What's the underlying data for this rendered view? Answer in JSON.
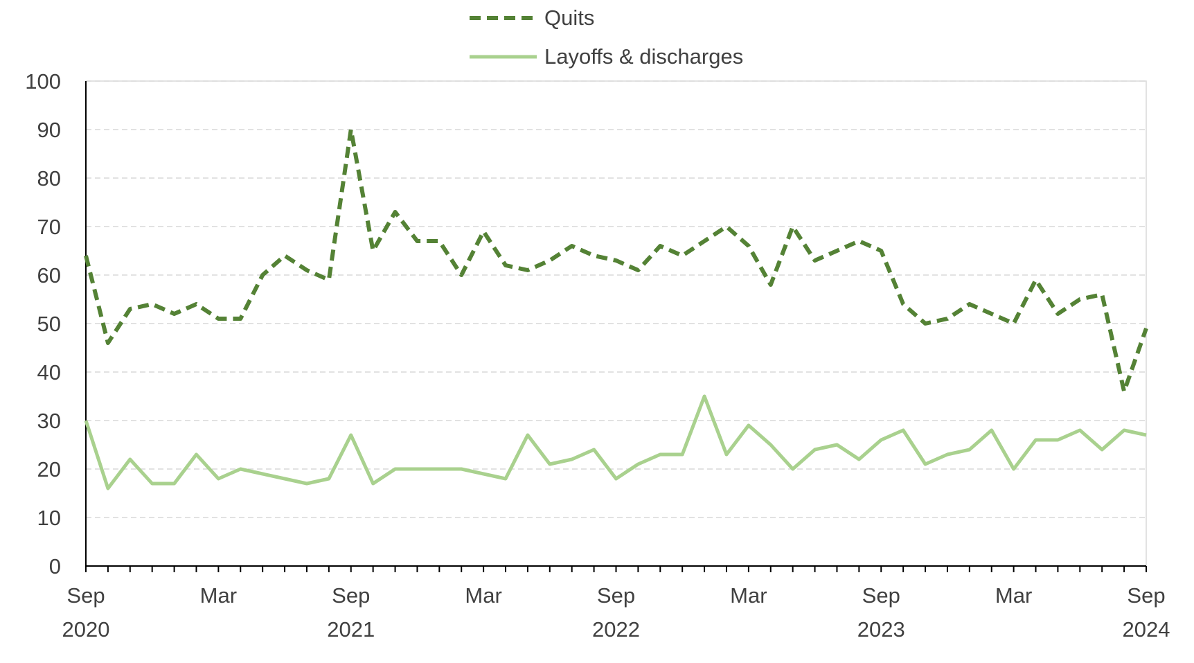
{
  "chart_data": {
    "type": "line",
    "title": "",
    "xlabel": "",
    "ylabel": "",
    "ylim": [
      0,
      100
    ],
    "yticks": [
      0,
      10,
      20,
      30,
      40,
      50,
      60,
      70,
      80,
      90,
      100
    ],
    "grid": true,
    "legend_position": "top-center",
    "x": [
      "2020-09",
      "2020-10",
      "2020-11",
      "2020-12",
      "2021-01",
      "2021-02",
      "2021-03",
      "2021-04",
      "2021-05",
      "2021-06",
      "2021-07",
      "2021-08",
      "2021-09",
      "2021-10",
      "2021-11",
      "2021-12",
      "2022-01",
      "2022-02",
      "2022-03",
      "2022-04",
      "2022-05",
      "2022-06",
      "2022-07",
      "2022-08",
      "2022-09",
      "2022-10",
      "2022-11",
      "2022-12",
      "2023-01",
      "2023-02",
      "2023-03",
      "2023-04",
      "2023-05",
      "2023-06",
      "2023-07",
      "2023-08",
      "2023-09",
      "2023-10",
      "2023-11",
      "2023-12",
      "2024-01",
      "2024-02",
      "2024-03",
      "2024-04",
      "2024-05",
      "2024-06",
      "2024-07",
      "2024-08",
      "2024-09"
    ],
    "x_tick_labels": [
      {
        "x": "2020-09",
        "month": "Sep",
        "year": "2020"
      },
      {
        "x": "2021-03",
        "month": "Mar",
        "year": ""
      },
      {
        "x": "2021-09",
        "month": "Sep",
        "year": "2021"
      },
      {
        "x": "2022-03",
        "month": "Mar",
        "year": ""
      },
      {
        "x": "2022-09",
        "month": "Sep",
        "year": "2022"
      },
      {
        "x": "2023-03",
        "month": "Mar",
        "year": ""
      },
      {
        "x": "2023-09",
        "month": "Sep",
        "year": "2023"
      },
      {
        "x": "2024-03",
        "month": "Mar",
        "year": ""
      },
      {
        "x": "2024-09",
        "month": "Sep",
        "year": "2024"
      }
    ],
    "series": [
      {
        "name": "Quits",
        "color": "#548235",
        "style": "dashed",
        "values": [
          64,
          46,
          53,
          54,
          52,
          54,
          51,
          51,
          60,
          64,
          61,
          59,
          90,
          65,
          73,
          67,
          67,
          60,
          69,
          62,
          61,
          63,
          66,
          64,
          63,
          61,
          66,
          64,
          67,
          70,
          66,
          58,
          70,
          63,
          65,
          67,
          65,
          54,
          50,
          51,
          54,
          52,
          50,
          59,
          52,
          55,
          56,
          36,
          49
        ]
      },
      {
        "name": "Layoffs & discharges",
        "color": "#a9d18e",
        "style": "solid",
        "values": [
          30,
          16,
          22,
          17,
          17,
          23,
          18,
          20,
          19,
          18,
          17,
          18,
          27,
          17,
          20,
          20,
          20,
          20,
          19,
          18,
          27,
          21,
          22,
          24,
          18,
          21,
          23,
          23,
          35,
          23,
          29,
          25,
          20,
          24,
          25,
          22,
          26,
          28,
          21,
          23,
          24,
          28,
          20,
          26,
          26,
          28,
          24,
          28,
          27
        ]
      }
    ]
  }
}
